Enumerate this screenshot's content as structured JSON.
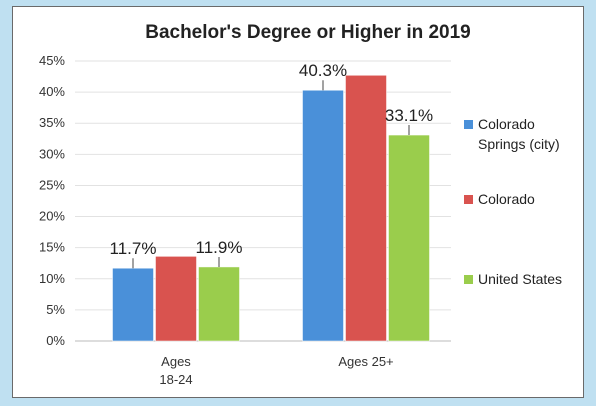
{
  "chart_data": {
    "type": "bar",
    "title": "Bachelor's Degree or Higher in 2019",
    "categories": [
      [
        "Ages",
        "18-24"
      ],
      [
        "Ages 25+"
      ]
    ],
    "series": [
      {
        "name": [
          "Colorado",
          "Springs (city)"
        ],
        "values": [
          11.7,
          40.3
        ],
        "color": "#4a90d9",
        "labels": [
          "11.7%",
          "40.3%"
        ]
      },
      {
        "name": [
          "Colorado"
        ],
        "values": [
          13.6,
          42.7
        ],
        "color": "#d9534f",
        "labels": [
          "",
          ""
        ]
      },
      {
        "name": [
          "United States"
        ],
        "values": [
          11.9,
          33.1
        ],
        "color": "#9acd4c",
        "labels": [
          "11.9%",
          "33.1%"
        ]
      }
    ],
    "ylim": [
      0,
      45
    ],
    "yticks": [
      "0%",
      "5%",
      "10%",
      "15%",
      "20%",
      "25%",
      "30%",
      "35%",
      "40%",
      "45%"
    ],
    "ytick_values": [
      0,
      5,
      10,
      15,
      20,
      25,
      30,
      35,
      40,
      45
    ],
    "grid": true,
    "legend": "right"
  }
}
